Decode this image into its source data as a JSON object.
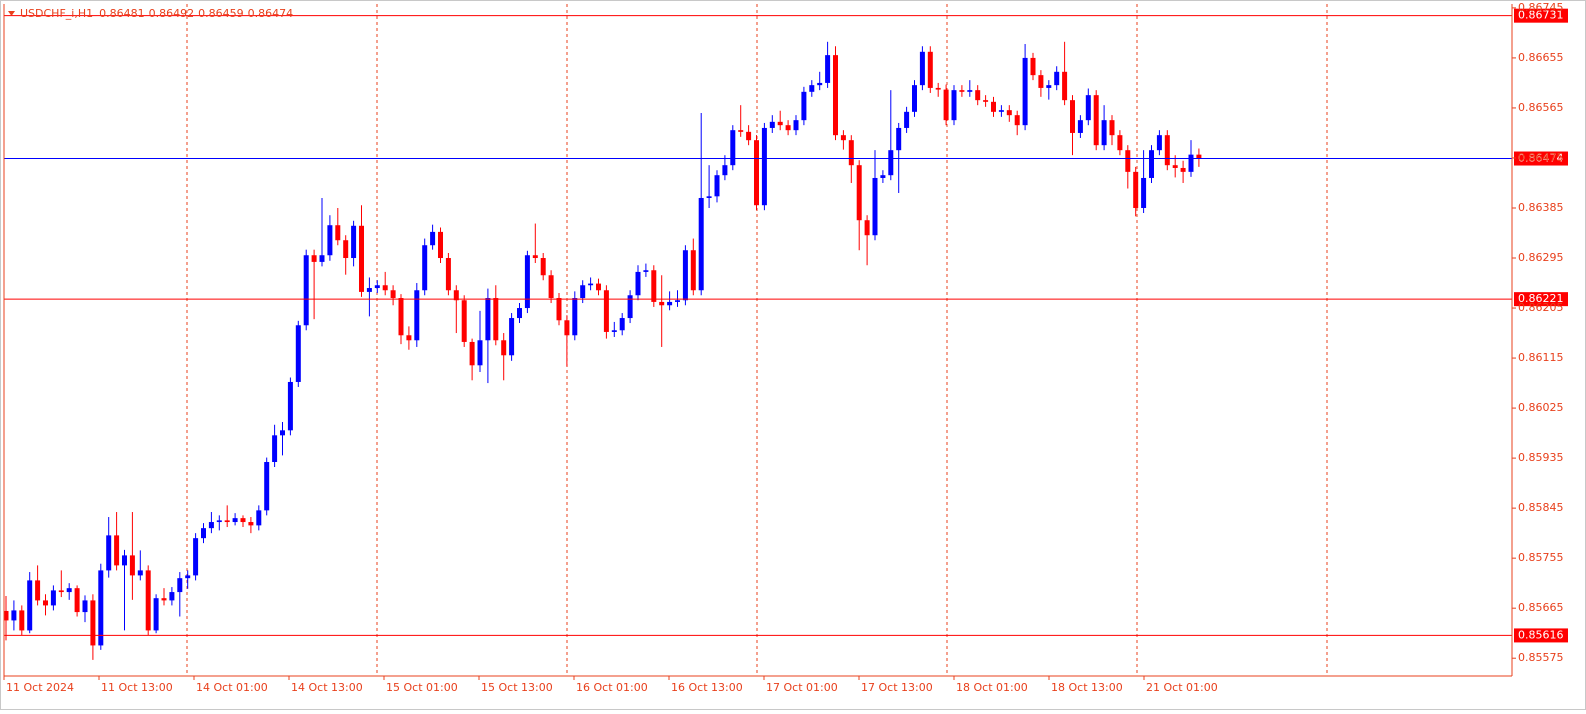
{
  "chart_data": {
    "type": "candlestick",
    "title": "USDCHF_i,H1",
    "up_color": "#0000ff",
    "down_color": "#ff0000",
    "axis_color": "#e8401c",
    "level_label_color": "#ff0000",
    "ylim": [
      0.85543,
      0.86752
    ],
    "yticks": [
      0.86745,
      0.86655,
      0.86565,
      0.86475,
      0.86385,
      0.86295,
      0.86205,
      0.86115,
      0.86025,
      0.85935,
      0.85845,
      0.85755,
      0.85665,
      0.85575
    ],
    "x_labels": [
      "11 Oct 2024",
      "11 Oct 13:00",
      "14 Oct 01:00",
      "14 Oct 13:00",
      "15 Oct 01:00",
      "15 Oct 13:00",
      "16 Oct 01:00",
      "16 Oct 13:00",
      "17 Oct 01:00",
      "17 Oct 13:00",
      "18 Oct 01:00",
      "18 Oct 13:00",
      "21 Oct 01:00"
    ],
    "levels": [
      {
        "value": 0.86731,
        "color": "#ff0000"
      },
      {
        "value": 0.86474,
        "color": "#0000ff"
      },
      {
        "value": 0.86221,
        "color": "#ff0000"
      },
      {
        "value": 0.85616,
        "color": "#ff0000"
      }
    ],
    "open": [
      0.8566,
      0.85643,
      0.85661,
      0.85625,
      0.85715,
      0.85679,
      0.8567,
      0.85697,
      0.85694,
      0.85701,
      0.85658,
      0.85679,
      0.85598,
      0.85733,
      0.85796,
      0.85742,
      0.8576,
      0.85724,
      0.85733,
      0.85625,
      0.85683,
      0.85679,
      0.85694,
      0.85719,
      0.85724,
      0.85791,
      0.85809,
      0.8582,
      0.85823,
      0.8582,
      0.85827,
      0.8582,
      0.85814,
      0.85841,
      0.85928,
      0.85976,
      0.85985,
      0.86072,
      0.86174,
      0.863,
      0.86288,
      0.863,
      0.86354,
      0.86327,
      0.86295,
      0.86353,
      0.86234,
      0.86241,
      0.86246,
      0.86237,
      0.86223,
      0.86156,
      0.86147,
      0.86237,
      0.86318,
      0.86342,
      0.86295,
      0.86237,
      0.86219,
      0.86144,
      0.86102,
      0.86147,
      0.86223,
      0.86147,
      0.8612,
      0.86187,
      0.86205,
      0.863,
      0.86295,
      0.86264,
      0.86223,
      0.86183,
      0.86156,
      0.86223,
      0.86246,
      0.86249,
      0.86237,
      0.86162,
      0.86165,
      0.86187,
      0.86228,
      0.8627,
      0.86273,
      0.86216,
      0.8621,
      0.86216,
      0.86219,
      0.86309,
      0.86237,
      0.86403,
      0.86406,
      0.86444,
      0.86462,
      0.86525,
      0.86522,
      0.86507,
      0.8639,
      0.86529,
      0.8654,
      0.86534,
      0.86525,
      0.86543,
      0.86594,
      0.86606,
      0.8661,
      0.8666,
      0.86516,
      0.86507,
      0.86462,
      0.86363,
      0.86336,
      0.86439,
      0.86444,
      0.86489,
      0.86529,
      0.86558,
      0.86606,
      0.86666,
      0.86601,
      0.86598,
      0.86543,
      0.86597,
      0.86594,
      0.86597,
      0.86579,
      0.86576,
      0.86558,
      0.86561,
      0.86552,
      0.86534,
      0.86655,
      0.86624,
      0.86601,
      0.86606,
      0.8663,
      0.86579,
      0.8652,
      0.86543,
      0.86588,
      0.86498,
      0.86543,
      0.86516,
      0.86489,
      0.8645,
      0.86385,
      0.86439,
      0.86489,
      0.86516,
      0.86462,
      0.86457,
      0.8645,
      0.86481
    ],
    "high": [
      0.85687,
      0.85679,
      0.8567,
      0.8573,
      0.85742,
      0.8569,
      0.85706,
      0.85733,
      0.8571,
      0.85706,
      0.85688,
      0.8569,
      0.85745,
      0.85829,
      0.85838,
      0.8577,
      0.85838,
      0.85769,
      0.85742,
      0.8569,
      0.85701,
      0.85703,
      0.8573,
      0.85733,
      0.858,
      0.85818,
      0.85838,
      0.85832,
      0.8585,
      0.85836,
      0.85832,
      0.85829,
      0.8585,
      0.85936,
      0.85995,
      0.86,
      0.8608,
      0.86182,
      0.8631,
      0.8631,
      0.86403,
      0.86372,
      0.86385,
      0.86336,
      0.86362,
      0.8639,
      0.8626,
      0.86255,
      0.8627,
      0.86246,
      0.8623,
      0.86172,
      0.8625,
      0.8633,
      0.86355,
      0.8635,
      0.86304,
      0.86246,
      0.86228,
      0.8615,
      0.862,
      0.8624,
      0.86246,
      0.8616,
      0.86196,
      0.86214,
      0.86308,
      0.86357,
      0.86304,
      0.86273,
      0.86232,
      0.86192,
      0.86235,
      0.86255,
      0.8626,
      0.86258,
      0.86246,
      0.8618,
      0.86196,
      0.86237,
      0.86282,
      0.86285,
      0.86282,
      0.86264,
      0.86235,
      0.86237,
      0.86318,
      0.8633,
      0.86556,
      0.86462,
      0.86453,
      0.8648,
      0.86534,
      0.8657,
      0.86534,
      0.86516,
      0.86538,
      0.86552,
      0.8656,
      0.86543,
      0.86552,
      0.86603,
      0.86615,
      0.8663,
      0.86684,
      0.86676,
      0.86525,
      0.86516,
      0.86471,
      0.86372,
      0.86489,
      0.86453,
      0.86597,
      0.86538,
      0.86567,
      0.86615,
      0.86676,
      0.86676,
      0.8661,
      0.86607,
      0.86606,
      0.86606,
      0.86615,
      0.86606,
      0.86588,
      0.86585,
      0.8657,
      0.8657,
      0.8656,
      0.8668,
      0.86664,
      0.86633,
      0.86615,
      0.8664,
      0.86684,
      0.86588,
      0.86552,
      0.866,
      0.86597,
      0.8657,
      0.86552,
      0.86525,
      0.86498,
      0.86459,
      0.86489,
      0.86498,
      0.86525,
      0.86525,
      0.8648,
      0.8647,
      0.86507,
      0.86492
    ],
    "low": [
      0.85607,
      0.85625,
      0.85616,
      0.8562,
      0.8567,
      0.85652,
      0.85661,
      0.85685,
      0.8568,
      0.8565,
      0.8564,
      0.85572,
      0.8559,
      0.8572,
      0.85733,
      0.85625,
      0.8568,
      0.85715,
      0.85616,
      0.8562,
      0.8567,
      0.8567,
      0.8565,
      0.857,
      0.85715,
      0.85782,
      0.858,
      0.85805,
      0.85811,
      0.85814,
      0.85811,
      0.858,
      0.85805,
      0.85832,
      0.85919,
      0.8594,
      0.85976,
      0.86063,
      0.86165,
      0.86185,
      0.8628,
      0.8629,
      0.86318,
      0.86265,
      0.8628,
      0.86225,
      0.8619,
      0.86232,
      0.86228,
      0.8621,
      0.8614,
      0.8613,
      0.86135,
      0.86228,
      0.8631,
      0.86286,
      0.86228,
      0.8616,
      0.86135,
      0.86075,
      0.8609,
      0.8607,
      0.86138,
      0.86075,
      0.8611,
      0.86178,
      0.86196,
      0.86286,
      0.86255,
      0.86214,
      0.86174,
      0.861,
      0.86147,
      0.86214,
      0.86237,
      0.86228,
      0.8615,
      0.86153,
      0.86156,
      0.86178,
      0.86219,
      0.86261,
      0.86207,
      0.86135,
      0.86201,
      0.86207,
      0.8621,
      0.86228,
      0.86228,
      0.86385,
      0.86395,
      0.86435,
      0.86453,
      0.86513,
      0.86498,
      0.86381,
      0.86381,
      0.8652,
      0.86525,
      0.86516,
      0.86516,
      0.86534,
      0.86585,
      0.86597,
      0.86601,
      0.86507,
      0.8649,
      0.8643,
      0.86309,
      0.86282,
      0.86327,
      0.8643,
      0.86435,
      0.86412,
      0.8652,
      0.86549,
      0.86597,
      0.86592,
      0.86585,
      0.86534,
      0.86534,
      0.86585,
      0.86585,
      0.8657,
      0.86567,
      0.86549,
      0.86549,
      0.8654,
      0.86516,
      0.86525,
      0.86615,
      0.86585,
      0.8658,
      0.86597,
      0.8657,
      0.8648,
      0.86511,
      0.86534,
      0.86489,
      0.86489,
      0.86498,
      0.8648,
      0.8642,
      0.8637,
      0.86376,
      0.8643,
      0.8648,
      0.86453,
      0.8644,
      0.8643,
      0.86441,
      0.86459
    ],
    "close": [
      0.85643,
      0.85661,
      0.85625,
      0.85715,
      0.85679,
      0.8567,
      0.85697,
      0.85694,
      0.85701,
      0.85658,
      0.85679,
      0.85598,
      0.85733,
      0.85796,
      0.85742,
      0.8576,
      0.85724,
      0.85733,
      0.85625,
      0.85683,
      0.85679,
      0.85694,
      0.85719,
      0.85724,
      0.85791,
      0.85809,
      0.8582,
      0.85823,
      0.8582,
      0.85827,
      0.8582,
      0.85814,
      0.85841,
      0.85928,
      0.85976,
      0.85985,
      0.86072,
      0.86174,
      0.863,
      0.86288,
      0.863,
      0.86354,
      0.86327,
      0.86295,
      0.86353,
      0.86234,
      0.86241,
      0.86246,
      0.86237,
      0.86223,
      0.86156,
      0.86147,
      0.86237,
      0.86318,
      0.86342,
      0.86295,
      0.86237,
      0.86219,
      0.86144,
      0.86102,
      0.86147,
      0.86223,
      0.86147,
      0.8612,
      0.86187,
      0.86205,
      0.863,
      0.86295,
      0.86264,
      0.86223,
      0.86183,
      0.86156,
      0.86223,
      0.86246,
      0.86249,
      0.86237,
      0.86162,
      0.86165,
      0.86187,
      0.86228,
      0.8627,
      0.86273,
      0.86216,
      0.8621,
      0.86216,
      0.86219,
      0.86309,
      0.86237,
      0.86403,
      0.86406,
      0.86444,
      0.86462,
      0.86525,
      0.86522,
      0.86507,
      0.8639,
      0.86529,
      0.8654,
      0.86534,
      0.86525,
      0.86543,
      0.86594,
      0.86606,
      0.8661,
      0.8666,
      0.86516,
      0.86507,
      0.86462,
      0.86363,
      0.86336,
      0.86439,
      0.86444,
      0.86489,
      0.86529,
      0.86558,
      0.86606,
      0.86666,
      0.86601,
      0.86598,
      0.86543,
      0.86597,
      0.86594,
      0.86597,
      0.86579,
      0.86576,
      0.86558,
      0.86561,
      0.86552,
      0.86534,
      0.86655,
      0.86624,
      0.86601,
      0.86606,
      0.8663,
      0.86579,
      0.8652,
      0.86543,
      0.86588,
      0.86498,
      0.86543,
      0.86516,
      0.86489,
      0.8645,
      0.86385,
      0.86439,
      0.86489,
      0.86516,
      0.86462,
      0.86457,
      0.8645,
      0.86481,
      0.86474
    ]
  }
}
